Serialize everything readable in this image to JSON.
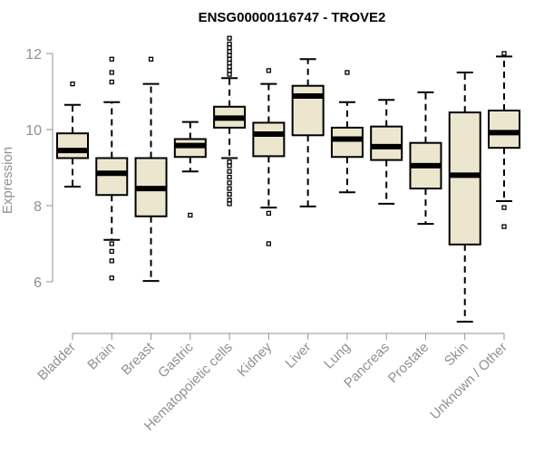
{
  "chart_data": {
    "type": "boxplot",
    "title": "ENSG00000116747 - TROVE2",
    "xlabel": "",
    "ylabel": "Expression",
    "ylim": [
      4.8,
      12.4
    ],
    "yticks": [
      6,
      8,
      10,
      12
    ],
    "yticks_labels": [
      "6",
      "8",
      "10",
      "12"
    ],
    "colors": {
      "box_fill": "#ede6cf",
      "stroke": "#000000",
      "axis": "#909090",
      "text": "#909090"
    },
    "categories": [
      "Bladder",
      "Brain",
      "Breast",
      "Gastric",
      "Hematopoietic cells",
      "Kidney",
      "Liver",
      "Lung",
      "Pancreas",
      "Prostate",
      "Skin",
      "Unknown / Other"
    ],
    "boxes": [
      {
        "name": "Bladder",
        "q1": 9.25,
        "median": 9.45,
        "q3": 9.9,
        "whisker_low": 8.5,
        "whisker_high": 10.65,
        "outliers": [
          11.2
        ]
      },
      {
        "name": "Brain",
        "q1": 8.28,
        "median": 8.85,
        "q3": 9.25,
        "whisker_low": 7.1,
        "whisker_high": 10.72,
        "outliers": [
          6.1,
          6.55,
          6.8,
          7.0,
          11.25,
          11.5,
          11.85
        ]
      },
      {
        "name": "Breast",
        "q1": 7.72,
        "median": 8.45,
        "q3": 9.25,
        "whisker_low": 6.02,
        "whisker_high": 11.2,
        "outliers": [
          11.85
        ]
      },
      {
        "name": "Gastric",
        "q1": 9.28,
        "median": 9.58,
        "q3": 9.75,
        "whisker_low": 8.9,
        "whisker_high": 10.2,
        "outliers": [
          7.75
        ]
      },
      {
        "name": "Hematopoietic cells",
        "q1": 10.05,
        "median": 10.3,
        "q3": 10.6,
        "whisker_low": 9.25,
        "whisker_high": 11.35,
        "outliers": [
          8.05,
          8.15,
          8.3,
          8.45,
          8.6,
          8.75,
          8.9,
          9.05,
          9.15,
          11.45,
          11.55,
          11.65,
          11.75,
          11.85,
          11.95,
          12.05,
          12.15,
          12.25,
          12.4
        ]
      },
      {
        "name": "Kidney",
        "q1": 9.3,
        "median": 9.88,
        "q3": 10.18,
        "whisker_low": 7.95,
        "whisker_high": 11.2,
        "outliers": [
          7.0,
          7.8,
          11.55
        ]
      },
      {
        "name": "Liver",
        "q1": 9.85,
        "median": 10.88,
        "q3": 11.15,
        "whisker_low": 7.98,
        "whisker_high": 11.85,
        "outliers": []
      },
      {
        "name": "Lung",
        "q1": 9.28,
        "median": 9.75,
        "q3": 10.05,
        "whisker_low": 8.35,
        "whisker_high": 10.72,
        "outliers": [
          11.5
        ]
      },
      {
        "name": "Pancreas",
        "q1": 9.2,
        "median": 9.55,
        "q3": 10.08,
        "whisker_low": 8.05,
        "whisker_high": 10.78,
        "outliers": []
      },
      {
        "name": "Prostate",
        "q1": 8.45,
        "median": 9.05,
        "q3": 9.65,
        "whisker_low": 7.52,
        "whisker_high": 10.98,
        "outliers": []
      },
      {
        "name": "Skin",
        "q1": 6.98,
        "median": 8.8,
        "q3": 10.45,
        "whisker_low": 4.95,
        "whisker_high": 11.5,
        "outliers": []
      },
      {
        "name": "Unknown / Other",
        "q1": 9.52,
        "median": 9.92,
        "q3": 10.5,
        "whisker_low": 8.12,
        "whisker_high": 11.92,
        "outliers": [
          7.45,
          7.95,
          12.0
        ]
      }
    ]
  }
}
